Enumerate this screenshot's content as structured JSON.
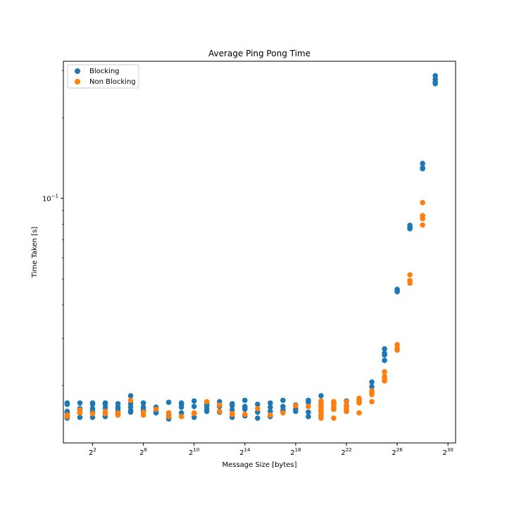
{
  "chart_data": {
    "type": "scatter",
    "title": "Average Ping Pong Time",
    "xlabel": "Message Size [bytes]",
    "ylabel": "Time Taken [s]",
    "x_scale": "log2",
    "y_scale": "log10",
    "xlim_exponent": [
      -0.3,
      30.6
    ],
    "ylim": [
      0.0122,
      0.325
    ],
    "x_ticks": [
      {
        "base": "2",
        "exp": "2",
        "value": 4
      },
      {
        "base": "2",
        "exp": "6",
        "value": 64
      },
      {
        "base": "2",
        "exp": "10",
        "value": 1024
      },
      {
        "base": "2",
        "exp": "14",
        "value": 16384
      },
      {
        "base": "2",
        "exp": "18",
        "value": 262144
      },
      {
        "base": "2",
        "exp": "22",
        "value": 4194304
      },
      {
        "base": "2",
        "exp": "26",
        "value": 67108864
      },
      {
        "base": "2",
        "exp": "30",
        "value": 1073741824
      }
    ],
    "y_ticks": [
      {
        "base": "10",
        "exp": "−1",
        "value": 0.1
      }
    ],
    "legend_position": "top-left",
    "grid": false,
    "series": [
      {
        "name": "Blocking",
        "color": "#1f77b4",
        "points": [
          {
            "x_exp": 0,
            "y": [
              0.0172,
              0.017,
              0.016,
              0.0158,
              0.0154,
              0.0151
            ]
          },
          {
            "x_exp": 1,
            "y": [
              0.0172,
              0.0164,
              0.0162,
              0.0158,
              0.0152
            ]
          },
          {
            "x_exp": 2,
            "y": [
              0.0172,
              0.017,
              0.0164,
              0.016,
              0.0158,
              0.0152
            ]
          },
          {
            "x_exp": 3,
            "y": [
              0.0172,
              0.017,
              0.0165,
              0.0158,
              0.0153
            ]
          },
          {
            "x_exp": 4,
            "y": [
              0.0171,
              0.0166,
              0.0164,
              0.016,
              0.0156
            ]
          },
          {
            "x_exp": 5,
            "y": [
              0.0183,
              0.0171,
              0.0166,
              0.0161,
              0.0159
            ]
          },
          {
            "x_exp": 6,
            "y": [
              0.0172,
              0.0166,
              0.0163,
              0.0161
            ]
          },
          {
            "x_exp": 7,
            "y": [
              0.0166,
              0.016,
              0.0158
            ]
          },
          {
            "x_exp": 8,
            "y": [
              0.0173,
              0.0155,
              0.0151,
              0.015
            ]
          },
          {
            "x_exp": 9,
            "y": [
              0.0172,
              0.017,
              0.0166,
              0.0158
            ]
          },
          {
            "x_exp": 10,
            "y": [
              0.0175,
              0.0167,
              0.0157,
              0.0152
            ]
          },
          {
            "x_exp": 11,
            "y": [
              0.017,
              0.0167,
              0.0163,
              0.016
            ]
          },
          {
            "x_exp": 12,
            "y": [
              0.0174,
              0.0167,
              0.0159
            ]
          },
          {
            "x_exp": 13,
            "y": [
              0.0171,
              0.0168,
              0.0162,
              0.0152
            ]
          },
          {
            "x_exp": 14,
            "y": [
              0.0176,
              0.0167,
              0.0165,
              0.0163,
              0.0154
            ]
          },
          {
            "x_exp": 15,
            "y": [
              0.017,
              0.0159,
              0.0151
            ]
          },
          {
            "x_exp": 16,
            "y": [
              0.0172,
              0.0166,
              0.016,
              0.0153
            ]
          },
          {
            "x_exp": 17,
            "y": [
              0.0176,
              0.0167,
              0.0162,
              0.0159
            ]
          },
          {
            "x_exp": 18,
            "y": [
              0.0169,
              0.0164,
              0.016
            ]
          },
          {
            "x_exp": 19,
            "y": [
              0.0176,
              0.0173,
              0.0159,
              0.0153
            ]
          },
          {
            "x_exp": 20,
            "y": [
              0.0183,
              0.0166,
              0.0162,
              0.0154
            ]
          },
          {
            "x_exp": 21,
            "y": [
              0.0171,
              0.0163
            ]
          },
          {
            "x_exp": 22,
            "y": [
              0.0175,
              0.0168,
              0.0164,
              0.016
            ]
          },
          {
            "x_exp": 23,
            "y": [
              0.0176,
              0.0173
            ]
          },
          {
            "x_exp": 24,
            "y": [
              0.0206,
              0.0198
            ]
          },
          {
            "x_exp": 25,
            "y": [
              0.0274,
              0.0264,
              0.026,
              0.0248
            ]
          },
          {
            "x_exp": 26,
            "y": [
              0.0457,
              0.0452,
              0.0448
            ]
          },
          {
            "x_exp": 27,
            "y": [
              0.0793,
              0.0779,
              0.077
            ]
          },
          {
            "x_exp": 28,
            "y": [
              0.135,
              0.13,
              0.129
            ]
          },
          {
            "x_exp": 29,
            "y": [
              0.287,
              0.278,
              0.272,
              0.268
            ]
          }
        ]
      },
      {
        "name": "Non Blocking",
        "color": "#ff7f0e",
        "points": [
          {
            "x_exp": 0,
            "y": [
              0.0155,
              0.0153
            ]
          },
          {
            "x_exp": 1,
            "y": [
              0.0162,
              0.0158
            ]
          },
          {
            "x_exp": 2,
            "y": [
              0.0157
            ]
          },
          {
            "x_exp": 3,
            "y": [
              0.016,
              0.0157
            ]
          },
          {
            "x_exp": 4,
            "y": [
              0.0158,
              0.0155
            ]
          },
          {
            "x_exp": 5,
            "y": [
              0.0176
            ]
          },
          {
            "x_exp": 6,
            "y": [
              0.0159,
              0.0155
            ]
          },
          {
            "x_exp": 7,
            "y": [
              0.0163
            ]
          },
          {
            "x_exp": 8,
            "y": [
              0.0158,
              0.0153
            ]
          },
          {
            "x_exp": 9,
            "y": [
              0.0153
            ]
          },
          {
            "x_exp": 10,
            "y": [
              0.0158,
              0.0157
            ]
          },
          {
            "x_exp": 11,
            "y": [
              0.0174
            ]
          },
          {
            "x_exp": 12,
            "y": [
              0.0169,
              0.016
            ]
          },
          {
            "x_exp": 13,
            "y": [
              0.0157,
              0.0156
            ]
          },
          {
            "x_exp": 14,
            "y": [
              0.0156
            ]
          },
          {
            "x_exp": 15,
            "y": [
              0.0164
            ]
          },
          {
            "x_exp": 16,
            "y": [
              0.0155
            ]
          },
          {
            "x_exp": 17,
            "y": [
              0.0158
            ]
          },
          {
            "x_exp": 18,
            "y": [
              0.0168
            ]
          },
          {
            "x_exp": 19,
            "y": [
              0.0167
            ]
          },
          {
            "x_exp": 20,
            "y": [
              0.0175,
              0.0172,
              0.0169,
              0.0165,
              0.0162,
              0.016,
              0.0156,
              0.0151
            ]
          },
          {
            "x_exp": 21,
            "y": [
              0.0174,
              0.0172,
              0.017,
              0.0166,
              0.0163,
              0.0151
            ]
          },
          {
            "x_exp": 22,
            "y": [
              0.0174,
              0.0167,
              0.0164,
              0.0161,
              0.016
            ]
          },
          {
            "x_exp": 23,
            "y": [
              0.0179,
              0.0177,
              0.0175,
              0.0172,
              0.0158
            ]
          },
          {
            "x_exp": 24,
            "y": [
              0.0191,
              0.0188,
              0.0185,
              0.0174
            ]
          },
          {
            "x_exp": 25,
            "y": [
              0.0225,
              0.0216,
              0.0212,
              0.0208
            ]
          },
          {
            "x_exp": 26,
            "y": [
              0.0284,
              0.0276,
              0.0271
            ]
          },
          {
            "x_exp": 27,
            "y": [
              0.0518,
              0.0493,
              0.0482
            ]
          },
          {
            "x_exp": 28,
            "y": [
              0.0963,
              0.0862,
              0.084,
              0.0795
            ]
          }
        ]
      }
    ]
  }
}
